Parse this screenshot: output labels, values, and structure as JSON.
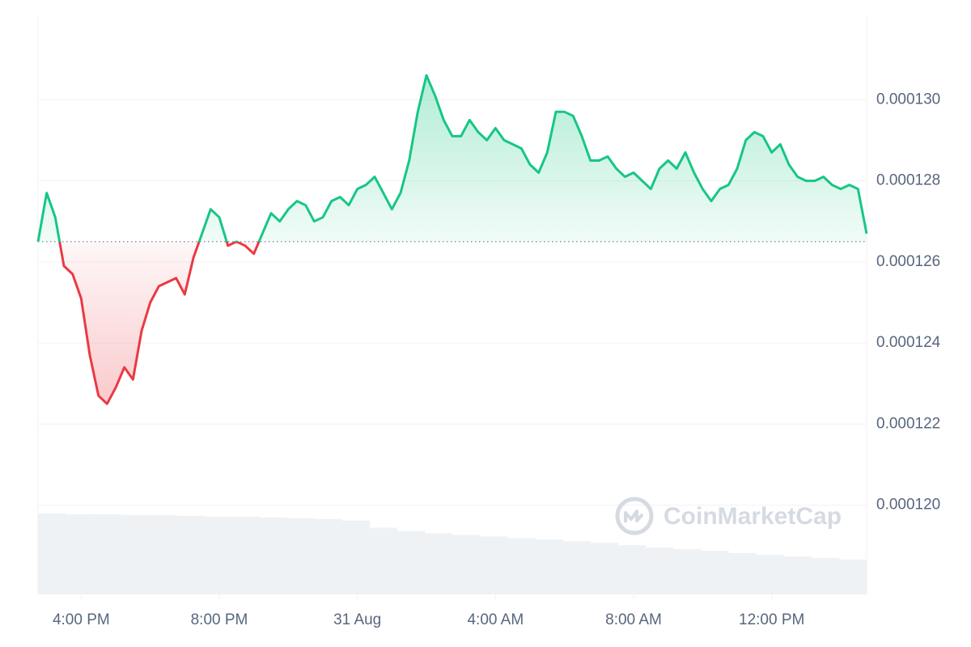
{
  "chart_data": {
    "type": "line",
    "x": [
      14.75,
      15,
      15.25,
      15.5,
      15.75,
      16,
      16.25,
      16.5,
      16.75,
      17,
      17.25,
      17.5,
      17.75,
      18,
      18.25,
      18.5,
      18.75,
      19,
      19.25,
      19.5,
      19.75,
      20,
      20.25,
      20.5,
      20.75,
      21,
      21.25,
      21.5,
      21.75,
      22,
      22.25,
      22.5,
      22.75,
      23,
      23.25,
      23.5,
      23.75,
      24,
      24.25,
      24.5,
      24.75,
      25,
      25.25,
      25.5,
      25.75,
      26,
      26.25,
      26.5,
      26.75,
      27,
      27.25,
      27.5,
      27.75,
      28,
      28.25,
      28.5,
      28.75,
      29,
      29.25,
      29.5,
      29.75,
      30,
      30.25,
      30.5,
      30.75,
      31,
      31.25,
      31.5,
      31.75,
      32,
      32.25,
      32.5,
      32.75,
      33,
      33.25,
      33.5,
      33.75,
      34,
      34.25,
      34.5,
      34.75,
      35,
      35.25,
      35.5,
      35.75,
      36,
      36.25,
      36.5,
      36.75,
      37,
      37.25,
      37.5,
      37.75,
      38,
      38.25,
      38.5,
      38.75
    ],
    "series": [
      {
        "name": "Price",
        "color": "#16c784",
        "color_below": "#ea3943",
        "values": [
          0.0001265,
          0.0001277,
          0.0001271,
          0.0001259,
          0.0001257,
          0.0001251,
          0.0001237,
          0.0001227,
          0.0001225,
          0.0001229,
          0.0001234,
          0.0001231,
          0.0001243,
          0.000125,
          0.0001254,
          0.0001255,
          0.0001256,
          0.0001252,
          0.0001261,
          0.0001267,
          0.0001273,
          0.0001271,
          0.0001264,
          0.0001265,
          0.0001264,
          0.0001262,
          0.0001267,
          0.0001272,
          0.000127,
          0.0001273,
          0.0001275,
          0.0001274,
          0.000127,
          0.0001271,
          0.0001275,
          0.0001276,
          0.0001274,
          0.0001278,
          0.0001279,
          0.0001281,
          0.0001277,
          0.0001273,
          0.0001277,
          0.0001285,
          0.0001297,
          0.0001306,
          0.0001301,
          0.0001295,
          0.0001291,
          0.0001291,
          0.0001295,
          0.0001292,
          0.000129,
          0.0001293,
          0.000129,
          0.0001289,
          0.0001288,
          0.0001284,
          0.0001282,
          0.0001287,
          0.0001297,
          0.0001297,
          0.0001296,
          0.0001291,
          0.0001285,
          0.0001285,
          0.0001286,
          0.0001283,
          0.0001281,
          0.0001282,
          0.000128,
          0.0001278,
          0.0001283,
          0.0001285,
          0.0001283,
          0.0001287,
          0.0001282,
          0.0001278,
          0.0001275,
          0.0001278,
          0.0001279,
          0.0001283,
          0.000129,
          0.0001292,
          0.0001291,
          0.0001287,
          0.0001289,
          0.0001284,
          0.0001281,
          0.000128,
          0.000128,
          0.0001281,
          0.0001279,
          0.0001278,
          0.0001279,
          0.0001278,
          0.0001267
        ]
      }
    ],
    "baseline": 0.0001265,
    "xlim": [
      14.75,
      38.75
    ],
    "xticks": [
      {
        "value": 16,
        "label": "4:00 PM"
      },
      {
        "value": 20,
        "label": "8:00 PM"
      },
      {
        "value": 24,
        "label": "31 Aug"
      },
      {
        "value": 28,
        "label": "4:00 AM"
      },
      {
        "value": 32,
        "label": "8:00 AM"
      },
      {
        "value": 36,
        "label": "12:00 PM"
      }
    ],
    "ylim": [
      0.0001178,
      0.0001321
    ],
    "yticks": [
      {
        "value": 0.00012,
        "label": "0.000120"
      },
      {
        "value": 0.000122,
        "label": "0.000122"
      },
      {
        "value": 0.000124,
        "label": "0.000124"
      },
      {
        "value": 0.000126,
        "label": "0.000126"
      },
      {
        "value": 0.000128,
        "label": "0.000128"
      },
      {
        "value": 0.00013,
        "label": "0.000130"
      }
    ],
    "grid": true,
    "volume": {
      "color": "#eff2f5",
      "ylim": [
        0,
        110
      ],
      "values": [
        102,
        101,
        101,
        100,
        100,
        99,
        98,
        98,
        97,
        96,
        95,
        93,
        84,
        80,
        77,
        75,
        73,
        71,
        69,
        67,
        65,
        62,
        59,
        57,
        55,
        52,
        50,
        48,
        46,
        44
      ]
    },
    "watermark": "CoinMarketCap"
  }
}
